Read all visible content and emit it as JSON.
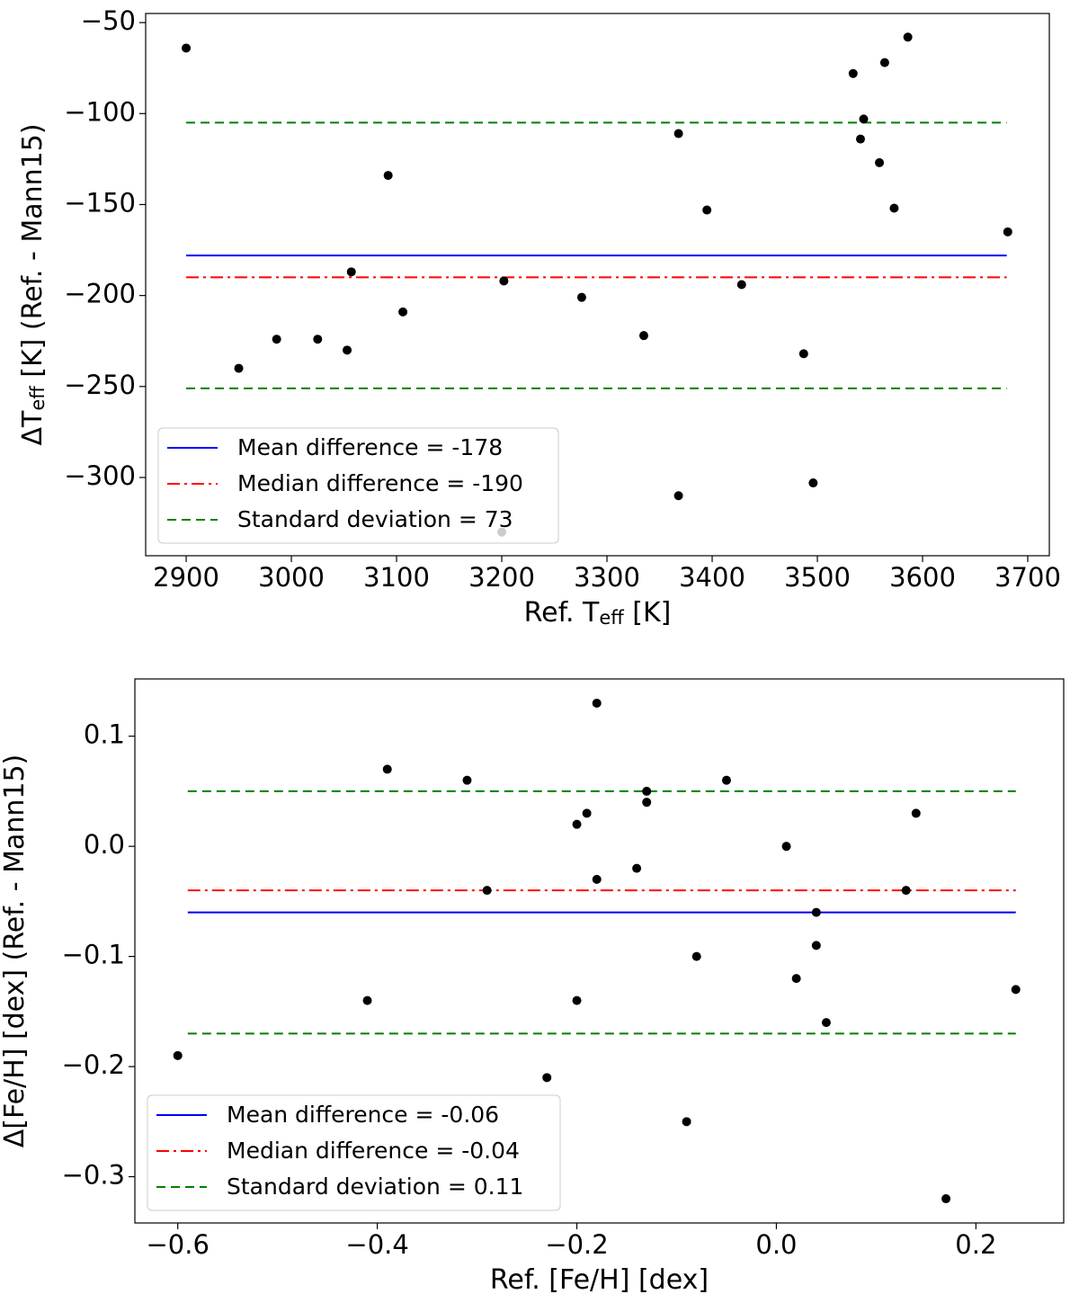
{
  "chart_data": [
    {
      "type": "scatter",
      "xlabel": [
        "Ref. T",
        "eff",
        " [K]"
      ],
      "ylabel": [
        "ΔT",
        "eff",
        " [K] (Ref. - Mann15)"
      ],
      "xlim": [
        2861.5,
        3720.5
      ],
      "ylim": [
        -343,
        -45
      ],
      "xticks": [
        2900,
        3000,
        3100,
        3200,
        3300,
        3400,
        3500,
        3600,
        3700
      ],
      "yticks": [
        {
          "value": -50,
          "label": "−50"
        },
        {
          "value": -100,
          "label": "−100"
        },
        {
          "value": -150,
          "label": "−150"
        },
        {
          "value": -200,
          "label": "−200"
        },
        {
          "value": -250,
          "label": "−250"
        },
        {
          "value": -300,
          "label": "−300"
        }
      ],
      "x": [
        2900,
        2950,
        2986,
        3025,
        3053,
        3057,
        3092,
        3106,
        3202,
        3200,
        3276,
        3335,
        3368,
        3368,
        3395,
        3428,
        3487,
        3496,
        3534,
        3541,
        3544,
        3559,
        3564,
        3573,
        3586,
        3681
      ],
      "y": [
        -64,
        -240,
        -224,
        -224,
        -230,
        -187,
        -134,
        -209,
        -192,
        -330,
        -201,
        -222,
        -111,
        -310,
        -153,
        -194,
        -232,
        -303,
        -78,
        -114,
        -103,
        -127,
        -72,
        -152,
        -58,
        -165
      ],
      "point_color": "#000000",
      "line_xlim": [
        2900,
        3680
      ],
      "hlines": [
        {
          "name": "Mean difference = -178",
          "color": "#0000ff",
          "dash": "solid",
          "values": [
            -178
          ]
        },
        {
          "name": "Median difference = -190",
          "color": "#ff0000",
          "dash": "dashdot",
          "values": [
            -190
          ]
        },
        {
          "name": "Standard deviation = 73",
          "color": "#008000",
          "dash": "dashed",
          "values": [
            -105,
            -251
          ]
        }
      ],
      "legend": "lower left"
    },
    {
      "type": "scatter",
      "xlabel": [
        "Ref. [Fe/H] [dex]"
      ],
      "ylabel": [
        "Δ[Fe/H] [dex] (Ref. - Mann15)"
      ],
      "xlim": [
        -0.643,
        0.288
      ],
      "ylim": [
        -0.342,
        0.152
      ],
      "xticks": [
        {
          "value": -0.6,
          "label": "−0.6"
        },
        {
          "value": -0.4,
          "label": "−0.4"
        },
        {
          "value": -0.2,
          "label": "−0.2"
        },
        {
          "value": 0,
          "label": "0.0"
        },
        0.2
      ],
      "yticks": [
        0.1,
        {
          "value": 0,
          "label": "0.0"
        },
        {
          "value": -0.1,
          "label": "−0.1"
        },
        {
          "value": -0.2,
          "label": "−0.2"
        },
        {
          "value": -0.3,
          "label": "−0.3"
        }
      ],
      "x": [
        -0.6,
        -0.41,
        -0.39,
        -0.31,
        -0.29,
        -0.23,
        -0.2,
        -0.2,
        -0.19,
        -0.18,
        -0.18,
        -0.14,
        -0.13,
        -0.13,
        -0.09,
        -0.08,
        -0.05,
        0.01,
        0.02,
        0.04,
        0.04,
        0.05,
        0.13,
        0.14,
        0.17,
        0.24
      ],
      "y": [
        -0.19,
        -0.14,
        0.07,
        0.06,
        -0.04,
        -0.21,
        0.02,
        -0.14,
        0.03,
        0.13,
        -0.03,
        -0.02,
        0.05,
        0.04,
        -0.25,
        -0.1,
        0.06,
        0.0,
        -0.12,
        -0.06,
        -0.09,
        -0.16,
        -0.04,
        0.03,
        -0.32,
        -0.13
      ],
      "point_color": "#000000",
      "line_xlim": [
        -0.59,
        0.24
      ],
      "hlines": [
        {
          "name": "Mean difference = -0.06",
          "color": "#0000ff",
          "dash": "solid",
          "values": [
            -0.06
          ]
        },
        {
          "name": "Median difference = -0.04",
          "color": "#ff0000",
          "dash": "dashdot",
          "values": [
            -0.04
          ]
        },
        {
          "name": "Standard deviation = 0.11",
          "color": "#008000",
          "dash": "dashed",
          "values": [
            0.05,
            -0.17
          ]
        }
      ],
      "legend": "lower left"
    }
  ]
}
